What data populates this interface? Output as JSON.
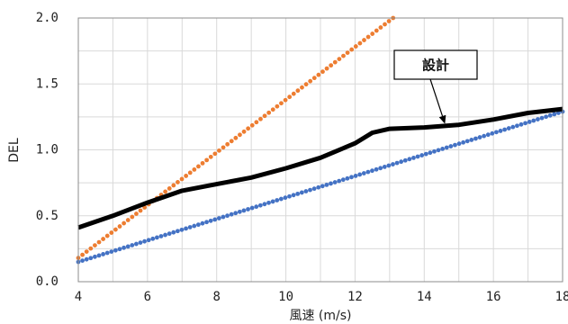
{
  "chart_data": {
    "type": "line",
    "title": "",
    "xlabel": "風速 (m/s)",
    "ylabel": "DEL",
    "xlim": [
      4,
      18
    ],
    "ylim": [
      0,
      2
    ],
    "x_ticks": [
      "4",
      "6",
      "8",
      "10",
      "12",
      "14",
      "16",
      "18"
    ],
    "y_ticks": [
      "0.0",
      "0.5",
      "1.0",
      "1.5",
      "2.0"
    ],
    "grid": true,
    "series": [
      {
        "name": "",
        "style": "dotted",
        "color": "#ED7D31",
        "points": [
          [
            4,
            0.18
          ],
          [
            13.1,
            2.0
          ]
        ]
      },
      {
        "name": "",
        "style": "dotted",
        "color": "#4472C4",
        "points": [
          [
            4,
            0.15
          ],
          [
            18,
            1.29
          ]
        ]
      },
      {
        "name": "設計",
        "style": "thick-solid",
        "color": "#000000",
        "points": [
          [
            4,
            0.41
          ],
          [
            5,
            0.5
          ],
          [
            6,
            0.6
          ],
          [
            7,
            0.69
          ],
          [
            8,
            0.74
          ],
          [
            9,
            0.79
          ],
          [
            10,
            0.86
          ],
          [
            11,
            0.94
          ],
          [
            12,
            1.05
          ],
          [
            12.5,
            1.13
          ],
          [
            13,
            1.16
          ],
          [
            14,
            1.17
          ],
          [
            15,
            1.19
          ],
          [
            16,
            1.23
          ],
          [
            17,
            1.28
          ],
          [
            18,
            1.31
          ]
        ]
      }
    ],
    "annotation": {
      "text": "設計",
      "target": [
        14.6,
        1.17
      ]
    }
  }
}
